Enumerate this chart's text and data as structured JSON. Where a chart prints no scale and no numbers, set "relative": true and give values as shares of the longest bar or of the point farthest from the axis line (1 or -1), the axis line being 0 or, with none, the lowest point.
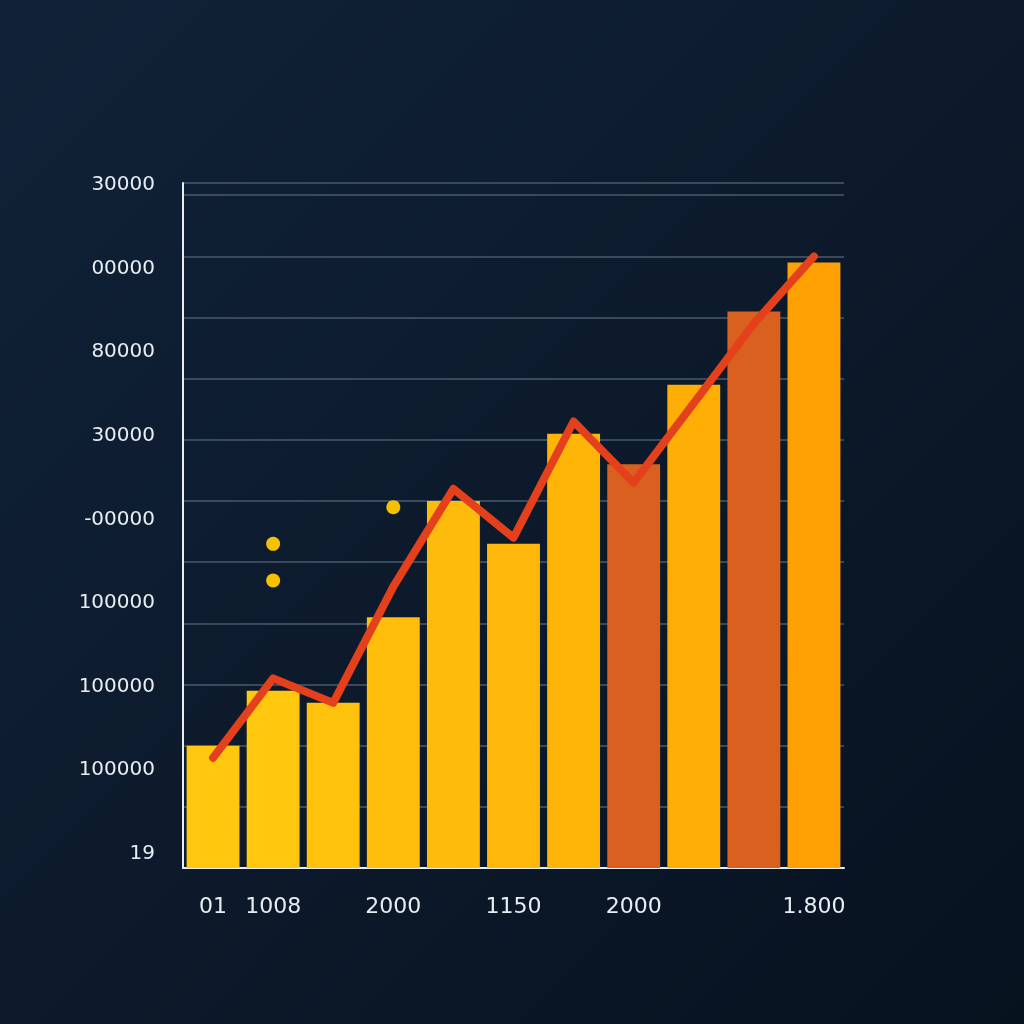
{
  "chart_data": {
    "type": "bar",
    "relative": true,
    "categories": [
      "01",
      "1008",
      null,
      "2000",
      null,
      "1150",
      null,
      "2000",
      null,
      null,
      "1.800"
    ],
    "series": [
      {
        "colors": [
          "#ffc80f",
          "#ffc80f",
          "#ffc20d",
          "#ffbd0c",
          "#ffbb0b",
          "#ffb80a",
          "#ffb408",
          "#d9601e",
          "#ffae06",
          "#d9601e",
          "#ffa004"
        ],
        "values": [
          0.2,
          0.29,
          0.27,
          0.41,
          0.6,
          0.53,
          0.71,
          0.66,
          0.79,
          0.91,
          0.99
        ]
      },
      {
        "type": "line",
        "color": "#e4401c",
        "line_style": "solid",
        "marker": "none",
        "values": [
          0.18,
          0.31,
          0.27,
          0.46,
          0.62,
          0.54,
          0.73,
          0.63,
          0.76,
          0.89,
          1
        ]
      },
      {
        "type": "scatter",
        "color": "#f5c000",
        "marker": "circle",
        "values": [
          null,
          0.47,
          null,
          0.59,
          null,
          null,
          null,
          null,
          null,
          null,
          null
        ]
      },
      {
        "type": "scatter",
        "color": "#f5c000",
        "marker": "circle",
        "values": [
          null,
          0.53,
          null,
          null,
          null,
          null,
          null,
          null,
          null,
          null,
          null
        ]
      }
    ],
    "annotations": [
      "30000",
      "00000",
      "80000",
      "30000",
      "-00000",
      "100000",
      "100000",
      "100000",
      "19"
    ],
    "grid": "y"
  }
}
